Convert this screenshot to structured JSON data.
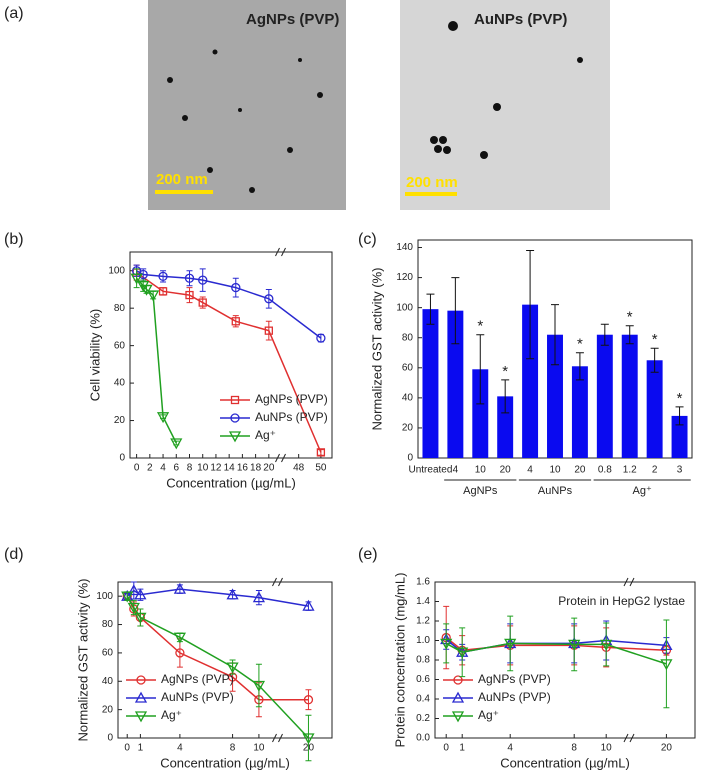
{
  "panel_a": {
    "label": "(a)",
    "images": [
      {
        "caption": "AgNPs (PVP)",
        "scale_bar": "200 nm"
      },
      {
        "caption": "AuNPs (PVP)",
        "scale_bar": "200 nm"
      }
    ]
  },
  "chart_data": [
    {
      "type": "line",
      "panel": "(b)",
      "y_label": "Cell viability (%)",
      "x_label": "Concentration (µg/mL)",
      "xlim": [
        -1,
        51
      ],
      "xbreak": [
        21,
        47
      ],
      "xticks": [
        0,
        2,
        4,
        6,
        8,
        10,
        12,
        14,
        16,
        18,
        20,
        48,
        50
      ],
      "ylim": [
        0,
        110
      ],
      "yticks": [
        0,
        20,
        40,
        60,
        80,
        100
      ],
      "legend": "lower right",
      "series": [
        {
          "name": "AgNPs (PVP)",
          "color": "#e03030",
          "marker": "square",
          "x": [
            0,
            4,
            8,
            10,
            15,
            20,
            50
          ],
          "values": [
            99,
            89,
            87,
            83,
            73,
            68,
            3
          ],
          "errors": [
            4,
            2,
            4,
            3,
            3,
            5,
            1.5
          ]
        },
        {
          "name": "AuNPs (PVP)",
          "color": "#2a2ad0",
          "marker": "circle",
          "x": [
            0,
            1,
            4,
            8,
            10,
            15,
            20,
            50
          ],
          "values": [
            100,
            98,
            97,
            96,
            95,
            91,
            85,
            64
          ],
          "errors": [
            3,
            3,
            3,
            4,
            6,
            5,
            5,
            2
          ]
        },
        {
          "name": "Ag⁺",
          "color": "#20a020",
          "marker": "triangle-down",
          "x": [
            0,
            1,
            1.5,
            2.5,
            4,
            6
          ],
          "values": [
            96,
            92,
            90,
            87,
            22,
            8
          ],
          "errors": [
            5,
            3,
            2,
            2,
            1,
            1
          ]
        }
      ]
    },
    {
      "type": "bar",
      "panel": "(c)",
      "y_label": "Normalized GST activity (%)",
      "color": "#0a0af0",
      "categories": [
        "Untreated",
        "4",
        "10",
        "20",
        "4",
        "10",
        "20",
        "0.8",
        "1.2",
        "2",
        "3"
      ],
      "values": [
        99,
        98,
        59,
        41,
        102,
        82,
        61,
        82,
        82,
        65,
        28
      ],
      "errors": [
        10,
        22,
        23,
        11,
        36,
        20,
        9,
        7,
        6,
        8,
        6
      ],
      "markers": [
        null,
        null,
        "*",
        "*",
        null,
        null,
        "*",
        null,
        "*",
        "*",
        "*"
      ],
      "groups": [
        {
          "label": "AgNPs",
          "from": 1,
          "to": 3
        },
        {
          "label": "AuNPs",
          "from": 4,
          "to": 6
        },
        {
          "label": "Ag⁺",
          "from": 7,
          "to": 10
        }
      ],
      "ylim": [
        0,
        145
      ],
      "yticks": [
        0,
        20,
        40,
        60,
        80,
        100,
        120,
        140
      ]
    },
    {
      "type": "line",
      "panel": "(d)",
      "y_label": "Normalized GST activity (%)",
      "x_label": "Concentration (µg/mL)",
      "xlim": [
        -0.7,
        20.5
      ],
      "xbreak": [
        11,
        19.5
      ],
      "xticks": [
        0,
        1,
        4,
        8,
        10,
        20
      ],
      "ylim": [
        0,
        110
      ],
      "yticks": [
        0,
        20,
        40,
        60,
        80,
        100
      ],
      "legend": "lower left",
      "series": [
        {
          "name": "AgNPs (PVP)",
          "color": "#e03030",
          "marker": "circle",
          "x": [
            0,
            0.5,
            1,
            4,
            8,
            10,
            20
          ],
          "values": [
            100,
            91,
            85,
            60,
            43,
            27,
            27
          ],
          "errors": [
            2,
            5,
            6,
            10,
            10,
            12,
            7
          ]
        },
        {
          "name": "AuNPs (PVP)",
          "color": "#2a2ad0",
          "marker": "triangle-up",
          "x": [
            0,
            0.5,
            1,
            4,
            8,
            10,
            20
          ],
          "values": [
            100,
            104,
            101,
            105,
            101,
            99,
            93
          ],
          "errors": [
            2,
            6,
            4,
            3,
            3,
            5,
            3
          ]
        },
        {
          "name": "Ag⁺",
          "color": "#20a020",
          "marker": "triangle-down",
          "x": [
            0,
            0.5,
            1,
            4,
            8,
            10,
            20
          ],
          "values": [
            100,
            92,
            85,
            71,
            50,
            37,
            0
          ],
          "errors": [
            3,
            5,
            6,
            3,
            5,
            15,
            16
          ]
        }
      ]
    },
    {
      "type": "line",
      "panel": "(e)",
      "y_label": "Protein concentration (mg/mL)",
      "x_label": "Concentration (µg/mL)",
      "annotation": "Protein in HepG2 lystae",
      "xlim": [
        -0.7,
        20.5
      ],
      "xbreak": [
        11,
        19.5
      ],
      "xticks": [
        0,
        1,
        4,
        8,
        10,
        20
      ],
      "ylim": [
        0,
        1.6
      ],
      "yticks": [
        {
          "value": 0,
          "label": "0.0"
        },
        0.2,
        0.4,
        0.6,
        0.8,
        {
          "value": 1,
          "label": "1.0"
        },
        1.2,
        1.4,
        1.6
      ],
      "legend": "lower left",
      "series": [
        {
          "name": "AgNPs (PVP)",
          "color": "#e03030",
          "marker": "circle",
          "x": [
            0,
            1,
            4,
            8,
            10,
            20
          ],
          "values": [
            1.03,
            0.9,
            0.95,
            0.95,
            0.93,
            0.9
          ],
          "errors": [
            0.32,
            0.15,
            0.2,
            0.2,
            0.2,
            0.05
          ]
        },
        {
          "name": "AuNPs (PVP)",
          "color": "#2a2ad0",
          "marker": "triangle-up",
          "x": [
            0,
            1,
            4,
            8,
            10,
            20
          ],
          "values": [
            1.01,
            0.88,
            0.97,
            0.97,
            1.0,
            0.95
          ],
          "errors": [
            0.1,
            0.08,
            0.2,
            0.2,
            0.2,
            0.08
          ]
        },
        {
          "name": "Ag⁺",
          "color": "#20a020",
          "marker": "triangle-down",
          "x": [
            0,
            1,
            4,
            8,
            10,
            20
          ],
          "values": [
            0.97,
            0.88,
            0.97,
            0.96,
            0.96,
            0.76
          ],
          "errors": [
            0.2,
            0.25,
            0.28,
            0.27,
            0.22,
            0.45
          ]
        }
      ]
    }
  ]
}
